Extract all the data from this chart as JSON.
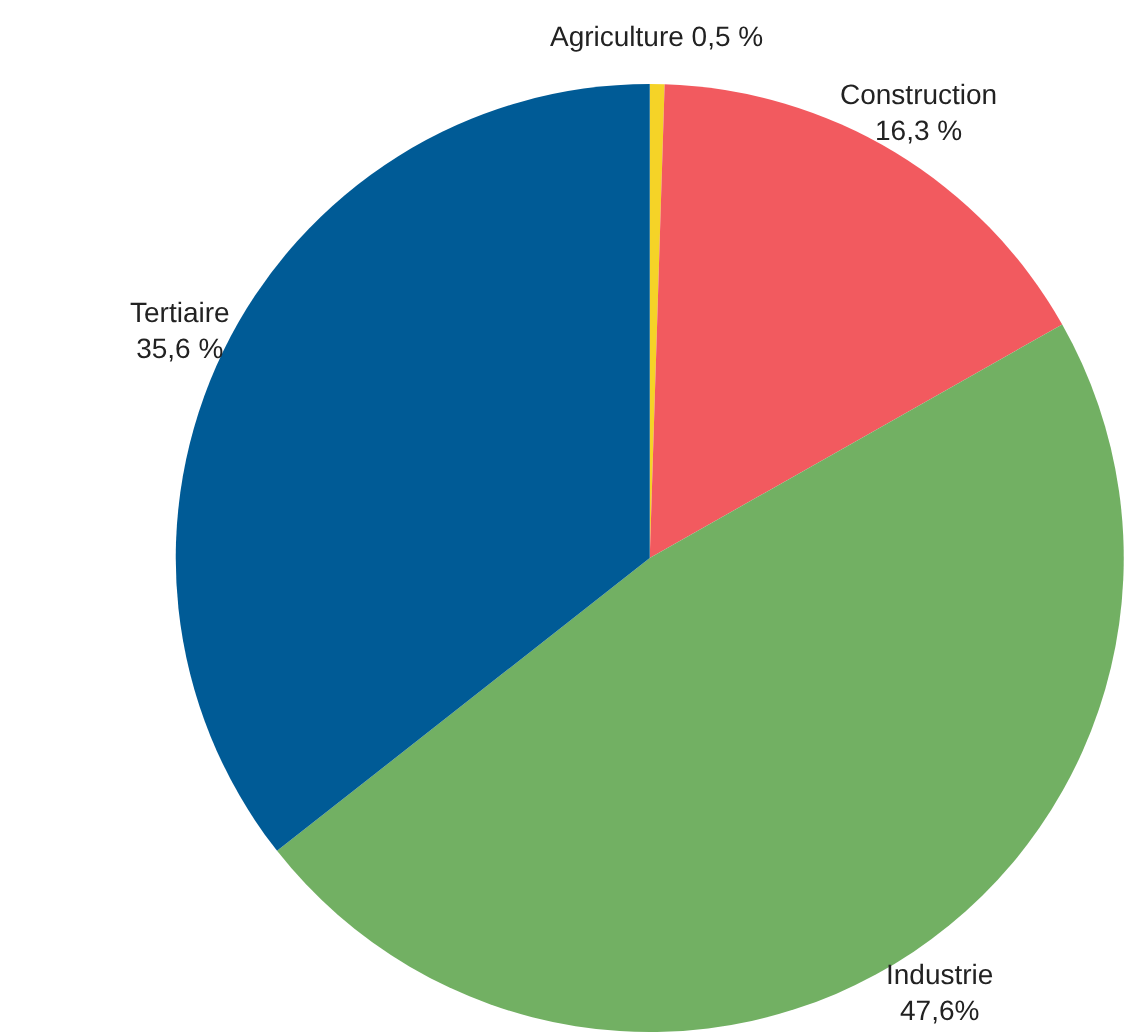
{
  "chart_data": {
    "type": "pie",
    "categories": [
      "Agriculture",
      "Construction",
      "Industrie",
      "Tertiaire"
    ],
    "values": [
      0.5,
      16.3,
      47.6,
      35.6
    ],
    "value_labels": [
      "0,5 %",
      "16,3 %",
      "47,6%",
      "35,6 %"
    ],
    "colors": [
      "#f5d327",
      "#f25a5f",
      "#72b063",
      "#005b96"
    ]
  }
}
